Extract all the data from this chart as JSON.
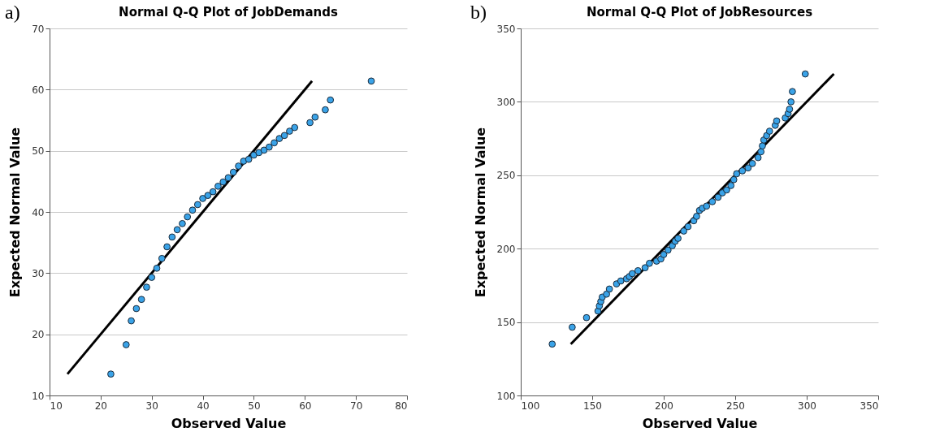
{
  "chart_data": [
    {
      "type": "scatter",
      "title": "Normal Q-Q Plot of JobDemands",
      "xlabel": "Observed Value",
      "ylabel": "Expected Normal Value",
      "annotations": [
        "a)"
      ],
      "xlim": [
        10,
        80
      ],
      "xticks": [
        10,
        20,
        30,
        40,
        50,
        60,
        70,
        80
      ],
      "ylim": [
        10,
        70
      ],
      "yticks": [
        10,
        20,
        30,
        40,
        50,
        60,
        70
      ],
      "grid": "y",
      "series": [
        {
          "marker": "circle",
          "color": "#3aa3e8",
          "x": [
            22,
            25,
            26,
            27,
            28,
            29,
            30,
            31,
            32,
            33,
            34,
            35,
            36,
            37,
            38,
            39,
            40,
            41,
            42,
            43,
            44,
            45,
            46,
            47,
            48,
            49,
            50,
            51,
            52,
            53,
            54,
            55,
            56,
            57,
            58,
            61,
            62,
            64,
            65,
            73
          ],
          "values": [
            13.5,
            18.3,
            22.2,
            24.2,
            25.7,
            27.7,
            29.3,
            30.8,
            32.4,
            34.3,
            35.9,
            37.1,
            38.1,
            39.2,
            40.3,
            41.2,
            42.2,
            42.7,
            43.3,
            44.2,
            44.9,
            45.6,
            46.5,
            47.5,
            48.3,
            48.6,
            49.3,
            49.7,
            50.1,
            50.6,
            51.3,
            52.0,
            52.5,
            53.2,
            53.8,
            54.6,
            55.5,
            56.7,
            58.3,
            61.4
          ]
        },
        {
          "type": "line",
          "color": "#000000",
          "line_style": "solid",
          "x": [
            13.5,
            61.4
          ],
          "values": [
            13.5,
            61.4
          ]
        }
      ]
    },
    {
      "type": "scatter",
      "title": "Normal Q-Q Plot of JobResources",
      "xlabel": "Observed Value",
      "ylabel": "Expected Normal Value",
      "annotations": [
        "b)"
      ],
      "xlim": [
        100,
        350
      ],
      "xticks": [
        100,
        150,
        200,
        250,
        300,
        350
      ],
      "ylim": [
        100,
        350
      ],
      "yticks": [
        100,
        150,
        200,
        250,
        300,
        350
      ],
      "grid": "y",
      "series": [
        {
          "marker": "circle",
          "color": "#3aa3e8",
          "x": [
            122,
            136,
            146,
            154,
            155,
            156,
            157,
            160,
            162,
            167,
            170,
            174,
            176,
            178,
            182,
            187,
            190,
            195,
            198,
            200,
            203,
            206,
            208,
            210,
            214,
            217,
            221,
            223,
            225,
            227,
            230,
            234,
            238,
            241,
            244,
            247,
            249,
            251,
            255,
            259,
            262,
            266,
            268,
            269,
            270,
            272,
            274,
            278,
            279,
            285,
            287,
            288,
            289,
            290,
            299
          ],
          "values": [
            135,
            146.5,
            153,
            157.5,
            161,
            164,
            167,
            169,
            172.5,
            176,
            178,
            179.5,
            181,
            183,
            185,
            187,
            190,
            191.5,
            193,
            196,
            199,
            202,
            205,
            207,
            212,
            215,
            219,
            222,
            226,
            227.5,
            229,
            232,
            235,
            238,
            240,
            243,
            247,
            251,
            253,
            255,
            258,
            262,
            266,
            270,
            274,
            277,
            280,
            284,
            287,
            289,
            292,
            295,
            300,
            307,
            319
          ]
        },
        {
          "type": "line",
          "color": "#000000",
          "line_style": "solid",
          "x": [
            135,
            319
          ],
          "values": [
            135,
            319
          ]
        }
      ]
    }
  ]
}
